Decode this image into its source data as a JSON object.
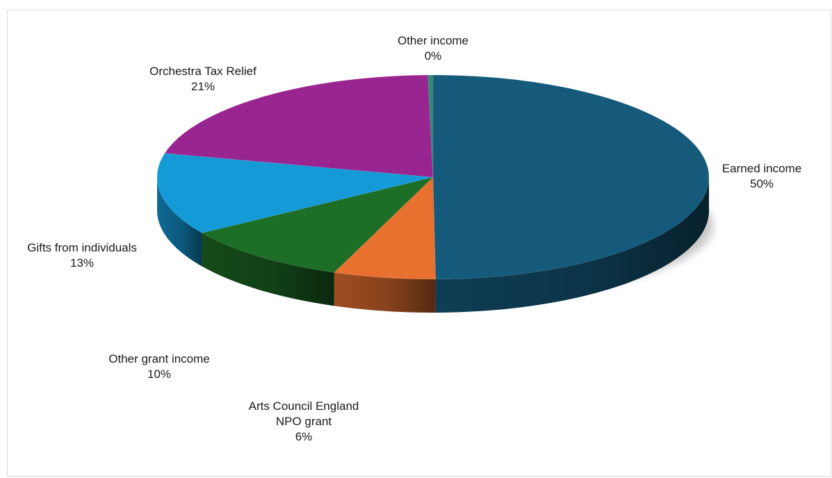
{
  "chart_data": {
    "type": "pie",
    "style": "3d",
    "title": "",
    "slices": [
      {
        "label": "Earned income",
        "label_lines": [
          "Earned income"
        ],
        "value": 50,
        "value_label": "50%",
        "color": "#155a7b"
      },
      {
        "label": "Arts Council England NPO grant",
        "label_lines": [
          "Arts Council England",
          "NPO grant"
        ],
        "value": 6,
        "value_label": "6%",
        "color": "#e87130"
      },
      {
        "label": "Other grant income",
        "label_lines": [
          "Other grant income"
        ],
        "value": 10,
        "value_label": "10%",
        "color": "#1d6e26"
      },
      {
        "label": "Gifts from individuals",
        "label_lines": [
          "Gifts from individuals"
        ],
        "value": 13,
        "value_label": "13%",
        "color": "#159ad8"
      },
      {
        "label": "Orchestra Tax Relief",
        "label_lines": [
          "Orchestra Tax Relief"
        ],
        "value": 21,
        "value_label": "21%",
        "color": "#992590"
      },
      {
        "label": "Other income",
        "label_lines": [
          "Other income"
        ],
        "value": 0.3,
        "value_label": "0%",
        "color": "#2e8a74"
      }
    ],
    "legend": "none",
    "data_labels": "outside"
  }
}
